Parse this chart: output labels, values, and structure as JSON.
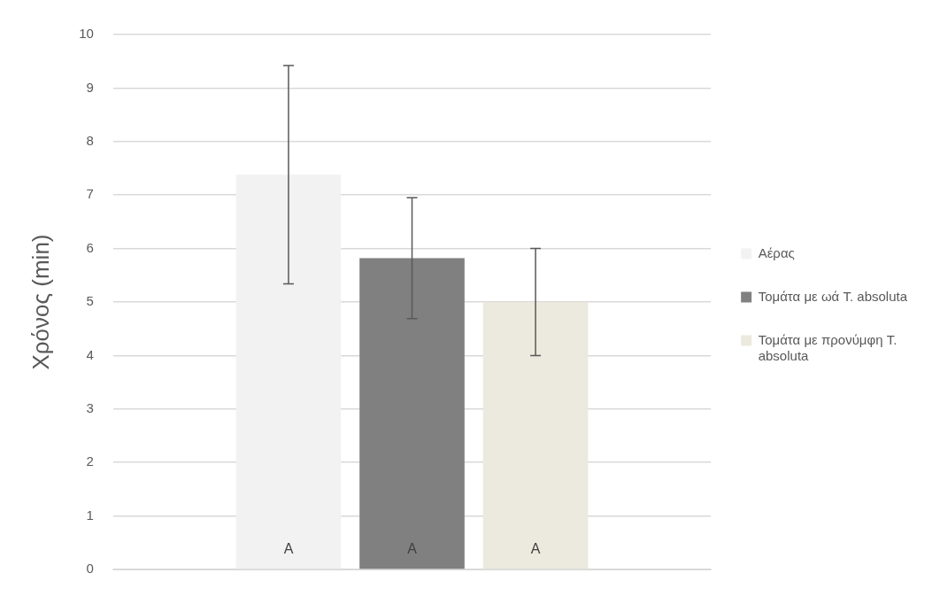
{
  "chart_data": {
    "type": "bar",
    "ylabel": "Χρόνος (min)",
    "categories": [
      null
    ],
    "series": [
      {
        "name": "Αέρας",
        "color": "#f2f2f2",
        "values": [
          7.38
        ],
        "errors": [
          2.04
        ],
        "value_labels": [
          "A"
        ]
      },
      {
        "name": "Τομάτα με ωά T. absoluta",
        "color": "#808080",
        "values": [
          5.82
        ],
        "errors": [
          1.13
        ],
        "value_labels": [
          "A"
        ]
      },
      {
        "name": "Τομάτα με προνύμφη T. absoluta",
        "color": "#ece9de",
        "values": [
          5.0
        ],
        "errors": [
          1.0
        ],
        "value_labels": [
          "A"
        ]
      }
    ],
    "ylim": [
      0,
      10
    ],
    "yticks": [
      0,
      1,
      2,
      3,
      4,
      5,
      6,
      7,
      8,
      9,
      10
    ],
    "grid": "y",
    "legend": "right"
  }
}
